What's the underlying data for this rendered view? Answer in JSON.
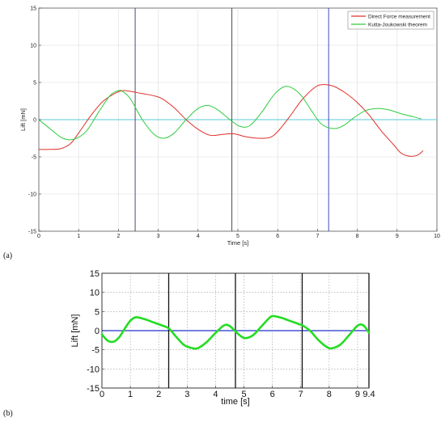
{
  "panels": [
    {
      "label": "(a)"
    },
    {
      "label": "(b)"
    }
  ],
  "chart_data": [
    {
      "type": "line",
      "title": "",
      "xlabel": "Time [s]",
      "ylabel": "Lift [mN]",
      "xlim": [
        0,
        10
      ],
      "ylim": [
        -15,
        15
      ],
      "xticks": [
        0,
        1,
        2,
        3,
        4,
        5,
        6,
        7,
        8,
        9,
        10
      ],
      "yticks": [
        -15,
        -10,
        -5,
        0,
        5,
        10,
        15
      ],
      "grid": true,
      "legend_position": "top-right",
      "series": [
        {
          "name": "Direct Force measurement",
          "color": "#e0302a",
          "x": [
            0,
            0.3,
            0.55,
            0.8,
            1.0,
            1.3,
            1.6,
            1.9,
            2.1,
            2.3,
            2.6,
            2.9,
            3.1,
            3.4,
            3.7,
            4.0,
            4.3,
            4.6,
            4.9,
            5.2,
            5.5,
            5.8,
            6.0,
            6.3,
            6.6,
            6.9,
            7.1,
            7.4,
            7.7,
            8.0,
            8.3,
            8.6,
            8.9,
            9.1,
            9.3,
            9.5,
            9.65
          ],
          "y": [
            -4.0,
            -4.0,
            -3.9,
            -3.2,
            -1.8,
            0.5,
            2.4,
            3.5,
            3.9,
            3.8,
            3.5,
            3.2,
            2.8,
            1.6,
            0.0,
            -1.3,
            -2.1,
            -2.0,
            -1.9,
            -2.3,
            -2.5,
            -2.4,
            -1.6,
            0.4,
            2.6,
            4.2,
            4.7,
            4.5,
            3.6,
            2.3,
            0.6,
            -1.5,
            -3.3,
            -4.5,
            -4.9,
            -4.8,
            -4.2
          ]
        },
        {
          "name": "Kutta-Joukowski theorem",
          "color": "#2ecc40",
          "x": [
            0,
            0.3,
            0.6,
            0.9,
            1.2,
            1.5,
            1.8,
            2.0,
            2.1,
            2.3,
            2.6,
            2.9,
            3.15,
            3.4,
            3.7,
            4.0,
            4.25,
            4.5,
            4.8,
            5.05,
            5.3,
            5.6,
            5.9,
            6.15,
            6.35,
            6.6,
            6.85,
            7.1,
            7.4,
            7.65,
            7.9,
            8.2,
            8.5,
            8.8,
            9.1,
            9.4,
            9.6
          ],
          "y": [
            0.0,
            -1.3,
            -2.5,
            -2.6,
            -1.5,
            1.0,
            3.3,
            3.9,
            3.8,
            2.8,
            0.0,
            -2.0,
            -2.5,
            -1.8,
            0.0,
            1.5,
            1.9,
            1.3,
            0.0,
            -0.9,
            -0.8,
            1.0,
            3.3,
            4.4,
            4.3,
            3.2,
            1.2,
            -0.6,
            -1.2,
            -0.8,
            0.2,
            1.2,
            1.5,
            1.3,
            0.8,
            0.4,
            0.1
          ]
        }
      ],
      "reference_lines": {
        "horizontal_zero": {
          "y": 0,
          "color": "#5bc8d8"
        },
        "vertical": [
          {
            "x": 2.42,
            "color": "#3a3a55"
          },
          {
            "x": 4.85,
            "color": "#3a3a3a"
          },
          {
            "x": 7.28,
            "color": "#2a3ab8"
          }
        ]
      }
    },
    {
      "type": "line",
      "title": "",
      "xlabel": "time [s]",
      "ylabel": "Lift [mN]",
      "xlim": [
        0,
        9.4
      ],
      "ylim": [
        -15,
        15
      ],
      "xticks": [
        0,
        1,
        2,
        3,
        4,
        5,
        6,
        7,
        8,
        9,
        9.4
      ],
      "xticklabels": [
        "0",
        "1",
        "2",
        "3",
        "4",
        "5",
        "6",
        "7",
        "8",
        "9",
        "9.4"
      ],
      "yticks": [
        -15,
        -10,
        -5,
        0,
        5,
        10,
        15
      ],
      "grid": true,
      "series": [
        {
          "color": "#22dd22",
          "x": [
            0,
            0.2,
            0.4,
            0.6,
            0.8,
            1.0,
            1.2,
            1.5,
            1.8,
            2.1,
            2.35,
            2.6,
            2.9,
            3.2,
            3.4,
            3.7,
            4.0,
            4.3,
            4.5,
            4.7,
            5.0,
            5.3,
            5.6,
            5.85,
            6.0,
            6.3,
            6.6,
            6.9,
            7.1,
            7.35,
            7.6,
            7.9,
            8.1,
            8.4,
            8.7,
            9.0,
            9.2,
            9.4
          ],
          "y": [
            -1.0,
            -2.6,
            -2.9,
            -1.8,
            0.5,
            2.6,
            3.5,
            3.0,
            2.2,
            1.4,
            0.6,
            -1.5,
            -3.8,
            -4.6,
            -4.5,
            -2.9,
            -0.6,
            1.4,
            1.2,
            -0.2,
            -1.9,
            -1.3,
            1.0,
            3.0,
            3.8,
            3.4,
            2.6,
            1.8,
            1.2,
            -0.2,
            -2.3,
            -4.2,
            -4.6,
            -3.6,
            -1.2,
            1.3,
            1.4,
            -0.5
          ]
        }
      ],
      "reference_lines": {
        "horizontal_zero": {
          "y": 0,
          "color": "#2233cc"
        },
        "vertical": [
          {
            "x": 2.35,
            "color": "#111111"
          },
          {
            "x": 4.7,
            "color": "#111111"
          },
          {
            "x": 7.05,
            "color": "#111111"
          },
          {
            "x": 9.4,
            "color": "#111111"
          }
        ]
      }
    }
  ]
}
